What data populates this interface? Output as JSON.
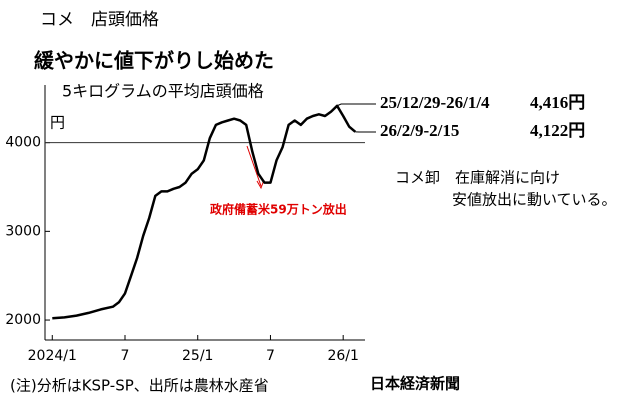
{
  "chart_data": {
    "type": "line",
    "kicker": "コメ　店頭価格",
    "title": "緩やかに値下がりし始めた",
    "subtitle": "5キログラムの平均店頭価格",
    "y_unit": "円",
    "x": [
      0,
      1,
      2,
      3,
      4,
      5,
      5.5,
      6,
      6.5,
      7,
      7.5,
      8,
      8.5,
      9,
      9.5,
      10,
      10.5,
      11,
      11.5,
      12,
      12.5,
      13,
      13.5,
      14,
      14.5,
      15,
      15.5,
      16,
      16.5,
      17,
      17.5,
      18,
      18.5,
      19,
      19.5,
      20,
      20.5,
      21,
      21.5,
      22,
      22.5,
      23,
      23.5,
      24,
      24.5,
      25
    ],
    "series": [
      {
        "color": "#000000",
        "values": [
          2020,
          2030,
          2050,
          2080,
          2120,
          2150,
          2200,
          2300,
          2500,
          2700,
          2950,
          3150,
          3400,
          3450,
          3450,
          3480,
          3500,
          3550,
          3650,
          3700,
          3800,
          4050,
          4200,
          4230,
          4250,
          4270,
          4250,
          4200,
          3900,
          3650,
          3550,
          3550,
          3800,
          3950,
          4200,
          4250,
          4200,
          4270,
          4300,
          4320,
          4300,
          4350,
          4416,
          4300,
          4180,
          4122
        ]
      }
    ],
    "xlim": [
      -0.6,
      25.8
    ],
    "xticks": [
      {
        "value": 0,
        "label": "2024/1"
      },
      {
        "value": 6,
        "label": "7"
      },
      {
        "value": 12,
        "label": "25/1"
      },
      {
        "value": 18,
        "label": "7"
      },
      {
        "value": 24,
        "label": "26/1"
      }
    ],
    "ylim": [
      1775,
      4650
    ],
    "yticks": [
      2000,
      3000,
      4000
    ],
    "event_note": "政府備蓄米59万トン放出",
    "callouts": [
      {
        "period": "25/12/29-26/1/4",
        "price": "4,416円"
      },
      {
        "period": "26/2/9-2/15",
        "price": "4,122円"
      }
    ],
    "comment": [
      "コメ卸　在庫解消に向け",
      "安値放出に動いている。"
    ],
    "note": "(注)分析はKSP-SP、出所は農林水産省",
    "source": "日本経済新聞"
  }
}
